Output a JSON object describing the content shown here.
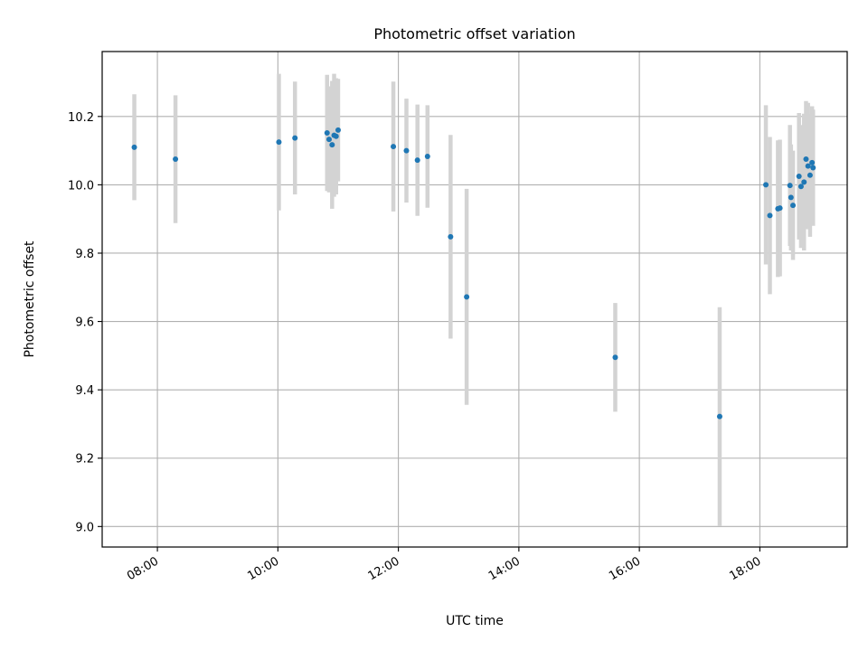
{
  "chart_data": {
    "type": "scatter",
    "title": "Photometric offset variation",
    "xlabel": "UTC time",
    "ylabel": "Photometric offset",
    "x_unit": "UTC time (HH:MM)",
    "xlim": [
      "07:05",
      "19:27"
    ],
    "ylim": [
      8.94,
      10.39
    ],
    "x_ticks": [
      "08:00",
      "10:00",
      "12:00",
      "14:00",
      "16:00",
      "18:00"
    ],
    "y_ticks": [
      "9.0",
      "9.2",
      "9.4",
      "9.6",
      "9.8",
      "10.0",
      "10.2"
    ],
    "grid": true,
    "marker_color": "#1f77b4",
    "errorbar_color": "#d3d3d3",
    "points": [
      {
        "t": "07:37",
        "y": 10.11,
        "err": 0.155
      },
      {
        "t": "08:18",
        "y": 10.075,
        "err": 0.187
      },
      {
        "t": "10:01",
        "y": 10.125,
        "err": 0.2
      },
      {
        "t": "10:17",
        "y": 10.137,
        "err": 0.165
      },
      {
        "t": "10:49",
        "y": 10.152,
        "err": 0.17
      },
      {
        "t": "10:51",
        "y": 10.133,
        "err": 0.155
      },
      {
        "t": "10:54",
        "y": 10.117,
        "err": 0.187
      },
      {
        "t": "10:56",
        "y": 10.145,
        "err": 0.18
      },
      {
        "t": "10:58",
        "y": 10.142,
        "err": 0.17
      },
      {
        "t": "11:00",
        "y": 10.16,
        "err": 0.15
      },
      {
        "t": "11:55",
        "y": 10.112,
        "err": 0.19
      },
      {
        "t": "12:08",
        "y": 10.1,
        "err": 0.152
      },
      {
        "t": "12:19",
        "y": 10.072,
        "err": 0.163
      },
      {
        "t": "12:29",
        "y": 10.083,
        "err": 0.15
      },
      {
        "t": "12:52",
        "y": 9.848,
        "err": 0.298
      },
      {
        "t": "13:08",
        "y": 9.672,
        "err": 0.316
      },
      {
        "t": "15:36",
        "y": 9.495,
        "err": 0.159
      },
      {
        "t": "17:20",
        "y": 9.322,
        "err": 0.32
      },
      {
        "t": "18:06",
        "y": 10.0,
        "err": 0.233
      },
      {
        "t": "18:10",
        "y": 9.91,
        "err": 0.23
      },
      {
        "t": "18:18",
        "y": 9.93,
        "err": 0.2
      },
      {
        "t": "18:20",
        "y": 9.932,
        "err": 0.2
      },
      {
        "t": "18:30",
        "y": 9.998,
        "err": 0.177
      },
      {
        "t": "18:31",
        "y": 9.963,
        "err": 0.155
      },
      {
        "t": "18:33",
        "y": 9.94,
        "err": 0.16
      },
      {
        "t": "18:39",
        "y": 10.025,
        "err": 0.185
      },
      {
        "t": "18:41",
        "y": 9.995,
        "err": 0.18
      },
      {
        "t": "18:44",
        "y": 10.008,
        "err": 0.2
      },
      {
        "t": "18:46",
        "y": 10.075,
        "err": 0.17
      },
      {
        "t": "18:48",
        "y": 10.055,
        "err": 0.185
      },
      {
        "t": "18:50",
        "y": 10.028,
        "err": 0.18
      },
      {
        "t": "18:52",
        "y": 10.065,
        "err": 0.165
      },
      {
        "t": "18:53",
        "y": 10.05,
        "err": 0.17
      }
    ]
  }
}
